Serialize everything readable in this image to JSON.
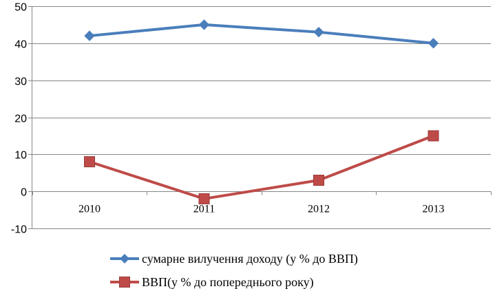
{
  "chart_data": {
    "type": "line",
    "categories": [
      "2010",
      "2011",
      "2012",
      "2013"
    ],
    "ylim": [
      -10,
      50
    ],
    "yticks": [
      -10,
      0,
      10,
      20,
      30,
      40,
      50
    ],
    "grid": true,
    "legend_position": "bottom",
    "series": [
      {
        "name": "сумарне вилучення доходу (у % до ВВП)",
        "values": [
          42,
          45,
          43,
          40
        ],
        "color": "#4A7EBB",
        "marker": "diamond"
      },
      {
        "name": "ВВП(у % до попереднього року)",
        "values": [
          8,
          -2,
          3,
          15
        ],
        "color": "#BE4B48",
        "marker": "square"
      }
    ]
  }
}
